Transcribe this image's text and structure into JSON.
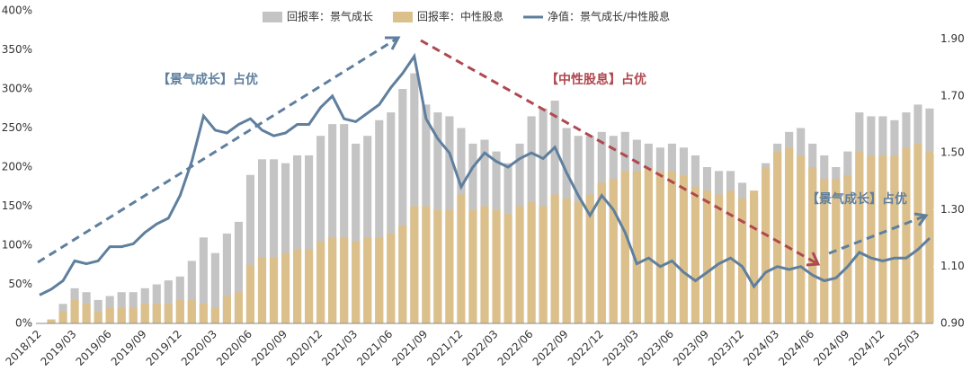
{
  "chart_data": {
    "type": "bar-line",
    "categories": [
      "2018/12",
      null,
      null,
      "2019/03",
      null,
      null,
      "2019/06",
      null,
      null,
      "2019/09",
      null,
      null,
      "2019/12",
      null,
      null,
      "2020/03",
      null,
      null,
      "2020/06",
      null,
      null,
      "2020/09",
      null,
      null,
      "2020/12",
      null,
      null,
      "2021/03",
      null,
      null,
      "2021/06",
      null,
      null,
      "2021/09",
      null,
      null,
      "2021/12",
      null,
      null,
      "2022/03",
      null,
      null,
      "2022/06",
      null,
      null,
      "2022/09",
      null,
      null,
      "2022/12",
      null,
      null,
      "2023/03",
      null,
      null,
      "2023/06",
      null,
      null,
      "2023/09",
      null,
      null,
      "2023/12",
      null,
      null,
      "2024/03",
      null,
      null,
      "2024/06",
      null,
      null,
      "2024/09",
      null,
      null,
      "2024/12",
      null,
      null,
      "2025/03",
      null
    ],
    "series": [
      {
        "name": "回报率：景气成长",
        "color": "#c4c4c4",
        "values": [
          0,
          5,
          25,
          45,
          40,
          30,
          35,
          40,
          40,
          45,
          50,
          55,
          60,
          80,
          110,
          90,
          115,
          130,
          190,
          210,
          210,
          205,
          215,
          215,
          240,
          255,
          255,
          230,
          240,
          260,
          270,
          300,
          320,
          280,
          270,
          265,
          250,
          230,
          235,
          220,
          205,
          230,
          265,
          275,
          285,
          250,
          240,
          240,
          245,
          240,
          245,
          235,
          230,
          225,
          230,
          225,
          215,
          200,
          195,
          195,
          180,
          165,
          205,
          230,
          245,
          250,
          230,
          215,
          200,
          220,
          270,
          265,
          265,
          260,
          270,
          280,
          275
        ]
      },
      {
        "name": "回报率：中性股息",
        "color": "#dcc08c",
        "values": [
          0,
          5,
          15,
          30,
          25,
          15,
          20,
          20,
          20,
          25,
          25,
          25,
          30,
          30,
          25,
          20,
          35,
          40,
          75,
          85,
          85,
          90,
          95,
          95,
          105,
          110,
          110,
          105,
          110,
          110,
          115,
          125,
          150,
          150,
          145,
          145,
          165,
          145,
          150,
          145,
          140,
          150,
          155,
          150,
          165,
          160,
          155,
          165,
          180,
          185,
          195,
          195,
          200,
          195,
          195,
          190,
          175,
          170,
          165,
          170,
          160,
          170,
          200,
          220,
          225,
          215,
          200,
          185,
          185,
          190,
          220,
          215,
          215,
          215,
          225,
          230,
          220
        ]
      },
      {
        "name": "净值：景气成长/中性股息",
        "color": "#5f7f9e",
        "axis": "y2",
        "values": [
          1.0,
          1.02,
          1.05,
          1.12,
          1.11,
          1.12,
          1.17,
          1.17,
          1.18,
          1.22,
          1.25,
          1.27,
          1.35,
          1.47,
          1.63,
          1.58,
          1.57,
          1.6,
          1.62,
          1.58,
          1.56,
          1.57,
          1.6,
          1.6,
          1.66,
          1.7,
          1.62,
          1.61,
          1.64,
          1.67,
          1.73,
          1.78,
          1.84,
          1.62,
          1.55,
          1.5,
          1.38,
          1.45,
          1.5,
          1.47,
          1.45,
          1.48,
          1.5,
          1.48,
          1.52,
          1.43,
          1.35,
          1.28,
          1.35,
          1.3,
          1.22,
          1.11,
          1.13,
          1.1,
          1.12,
          1.08,
          1.05,
          1.08,
          1.11,
          1.13,
          1.1,
          1.03,
          1.08,
          1.1,
          1.09,
          1.1,
          1.07,
          1.05,
          1.06,
          1.1,
          1.15,
          1.13,
          1.12,
          1.13,
          1.13,
          1.16,
          1.2
        ]
      }
    ],
    "ylim": [
      0,
      400
    ],
    "yticks": [
      {
        "value": 0,
        "label": "0%"
      },
      {
        "value": 50,
        "label": "50%"
      },
      {
        "value": 100,
        "label": "100%"
      },
      {
        "value": 150,
        "label": "150%"
      },
      {
        "value": 200,
        "label": "200%"
      },
      {
        "value": 250,
        "label": "250%"
      },
      {
        "value": 300,
        "label": "300%"
      },
      {
        "value": 350,
        "label": "350%"
      },
      {
        "value": 400,
        "label": "400%"
      }
    ],
    "y2lim": [
      0.9,
      2.0
    ],
    "y2ticks": [
      {
        "value": 0.9,
        "label": "0.90"
      },
      {
        "value": 1.1,
        "label": "1.10"
      },
      {
        "value": 1.3,
        "label": "1.30"
      },
      {
        "value": 1.5,
        "label": "1.50"
      },
      {
        "value": 1.7,
        "label": "1.70"
      },
      {
        "value": 1.9,
        "label": "1.90"
      }
    ],
    "annotations": [
      "【景气成长】占优",
      "【中性股息】占优",
      "【景气成长】占优"
    ],
    "legend": "top"
  }
}
